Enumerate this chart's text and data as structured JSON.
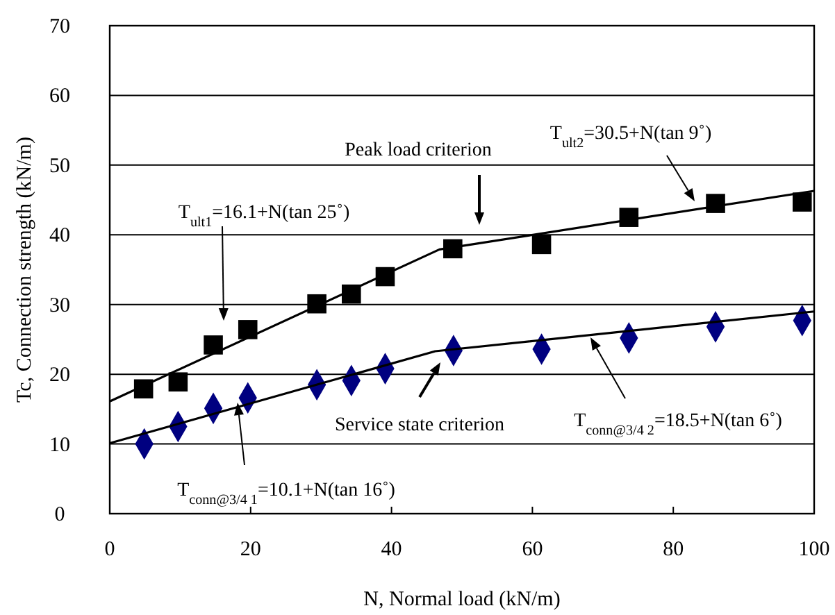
{
  "chart_data": {
    "type": "scatter",
    "xlabel": "N, Normal load (kN/m)",
    "ylabel": "Tc, Connection strength (kN/m)",
    "xlim": [
      0,
      100
    ],
    "ylim": [
      0,
      70
    ],
    "xticks": [
      0,
      20,
      40,
      60,
      80,
      100
    ],
    "yticks": [
      0,
      10,
      20,
      30,
      40,
      50,
      60,
      70
    ],
    "grid": "y",
    "series": [
      {
        "marker": "square",
        "color": "#000000",
        "x": [
          4.8,
          9.7,
          14.7,
          19.6,
          29.4,
          34.3,
          39.1,
          48.7,
          61.3,
          73.7,
          86.0,
          98.3
        ],
        "values": [
          17.9,
          18.9,
          24.2,
          26.4,
          30.1,
          31.5,
          34.0,
          38.0,
          38.6,
          42.5,
          44.5,
          44.7
        ]
      },
      {
        "marker": "diamond",
        "color": "#000080",
        "x": [
          4.9,
          9.7,
          14.7,
          19.6,
          29.4,
          34.3,
          39.1,
          48.8,
          61.3,
          73.7,
          86.0,
          98.3
        ],
        "values": [
          10.0,
          12.5,
          15.1,
          16.6,
          18.5,
          19.1,
          20.8,
          23.4,
          23.6,
          25.2,
          26.8,
          27.7
        ]
      },
      {
        "type": "line",
        "marker": "none",
        "line_style": "solid",
        "color": "#000000",
        "x": [
          0,
          46.8,
          100
        ],
        "values": [
          16.1,
          37.9,
          46.3
        ]
      },
      {
        "type": "line",
        "marker": "none",
        "line_style": "solid",
        "color": "#000000",
        "x": [
          0,
          46.2,
          100
        ],
        "values": [
          10.1,
          23.3,
          29.0
        ]
      }
    ],
    "annotations": [
      "T$_{ult1}$=16.1+N(tan 25˚)",
      "Peak load criterion",
      "T$_{ult2}$=30.5+N(tan 9˚)",
      "Service state criterion",
      "T$_{conn@3/4 1}$=10.1+N(tan 16˚)",
      "T$_{conn@3/4 2}$=18.5+N(tan 6˚)"
    ]
  }
}
